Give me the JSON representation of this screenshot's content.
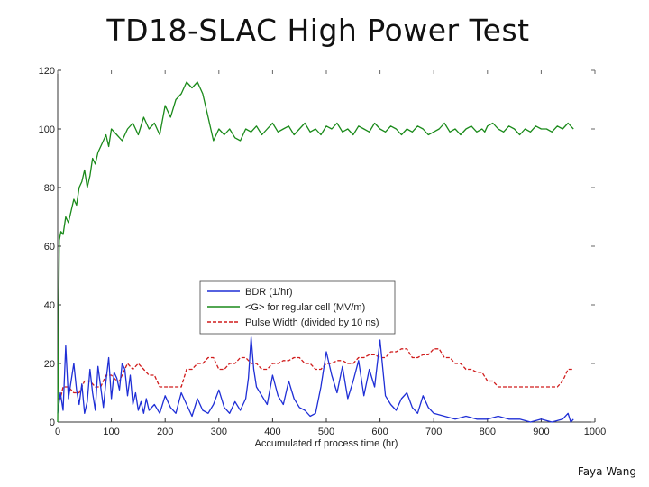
{
  "page": {
    "title": "TD18-SLAC High Power Test",
    "credit": "Faya Wang"
  },
  "chart_data": {
    "type": "line",
    "title": "TD18-SLAC High Power Test",
    "xlabel": "Accumulated rf process time (hr)",
    "ylabel": "",
    "xlim": [
      0,
      1000
    ],
    "ylim": [
      0,
      120
    ],
    "xticks": [
      0,
      100,
      200,
      300,
      400,
      500,
      600,
      700,
      800,
      900,
      1000
    ],
    "yticks": [
      0,
      20,
      40,
      60,
      80,
      100,
      120
    ],
    "grid": false,
    "legend_position": "center",
    "legend": [
      "BDR (1/hr)",
      "<G> for regular cell (MV/m)",
      "Pulse Width (divided by 10 ns)"
    ],
    "series": [
      {
        "name": "BDR (1/hr)",
        "color": "#1f2fd6",
        "style": "solid",
        "x": [
          0,
          5,
          10,
          15,
          20,
          25,
          30,
          35,
          40,
          45,
          50,
          55,
          60,
          65,
          70,
          75,
          80,
          85,
          90,
          95,
          100,
          105,
          110,
          115,
          120,
          125,
          130,
          135,
          140,
          145,
          150,
          155,
          160,
          165,
          170,
          180,
          190,
          200,
          210,
          220,
          230,
          240,
          250,
          260,
          270,
          280,
          290,
          300,
          310,
          320,
          330,
          340,
          350,
          355,
          360,
          365,
          370,
          380,
          390,
          400,
          410,
          420,
          430,
          440,
          450,
          460,
          470,
          480,
          490,
          500,
          510,
          520,
          530,
          540,
          550,
          560,
          570,
          580,
          590,
          600,
          610,
          620,
          630,
          640,
          650,
          660,
          670,
          680,
          690,
          700,
          720,
          740,
          760,
          780,
          800,
          820,
          840,
          860,
          880,
          900,
          920,
          940,
          950,
          955,
          960
        ],
        "y": [
          3,
          10,
          4,
          26,
          8,
          14,
          20,
          11,
          6,
          13,
          3,
          7,
          18,
          10,
          4,
          19,
          12,
          5,
          14,
          22,
          8,
          17,
          15,
          11,
          20,
          18,
          9,
          16,
          6,
          10,
          4,
          7,
          3,
          8,
          4,
          6,
          3,
          9,
          5,
          3,
          10,
          6,
          2,
          8,
          4,
          3,
          6,
          11,
          5,
          3,
          7,
          4,
          8,
          15,
          29,
          18,
          12,
          9,
          6,
          16,
          9,
          6,
          14,
          8,
          5,
          4,
          2,
          3,
          12,
          24,
          16,
          10,
          19,
          8,
          14,
          21,
          9,
          18,
          12,
          28,
          9,
          6,
          4,
          8,
          10,
          5,
          3,
          9,
          5,
          3,
          2,
          1,
          2,
          1,
          1,
          2,
          1,
          1,
          0,
          1,
          0,
          1,
          3,
          0,
          1
        ]
      },
      {
        "name": "<G> for regular cell (MV/m)",
        "color": "#1a8a1a",
        "style": "solid",
        "x": [
          0,
          3,
          6,
          10,
          15,
          20,
          25,
          30,
          35,
          40,
          45,
          50,
          55,
          60,
          65,
          70,
          75,
          80,
          85,
          90,
          95,
          100,
          110,
          120,
          130,
          140,
          150,
          160,
          170,
          180,
          190,
          200,
          210,
          220,
          230,
          240,
          250,
          260,
          270,
          280,
          290,
          300,
          310,
          320,
          330,
          340,
          350,
          360,
          370,
          380,
          390,
          400,
          410,
          420,
          430,
          440,
          450,
          460,
          470,
          480,
          490,
          500,
          510,
          520,
          530,
          540,
          550,
          560,
          570,
          580,
          590,
          600,
          610,
          620,
          630,
          640,
          650,
          660,
          670,
          680,
          690,
          700,
          710,
          720,
          730,
          740,
          750,
          760,
          770,
          780,
          790,
          795,
          800,
          810,
          820,
          830,
          840,
          850,
          860,
          870,
          880,
          890,
          900,
          910,
          920,
          930,
          940,
          950,
          955,
          960
        ],
        "y": [
          0,
          62,
          65,
          64,
          70,
          68,
          72,
          76,
          74,
          80,
          82,
          86,
          80,
          84,
          90,
          88,
          92,
          94,
          96,
          98,
          94,
          100,
          98,
          96,
          100,
          102,
          98,
          104,
          100,
          102,
          98,
          108,
          104,
          110,
          112,
          116,
          114,
          116,
          112,
          104,
          96,
          100,
          98,
          100,
          97,
          96,
          100,
          99,
          101,
          98,
          100,
          102,
          99,
          100,
          101,
          98,
          100,
          102,
          99,
          100,
          98,
          101,
          100,
          102,
          99,
          100,
          98,
          101,
          100,
          99,
          102,
          100,
          99,
          101,
          100,
          98,
          100,
          99,
          101,
          100,
          98,
          99,
          100,
          102,
          99,
          100,
          98,
          100,
          101,
          99,
          100,
          99,
          101,
          102,
          100,
          99,
          101,
          100,
          98,
          100,
          99,
          101,
          100,
          100,
          99,
          101,
          100,
          102,
          101,
          100
        ]
      },
      {
        "name": "Pulse Width (divided by 10 ns)",
        "color": "#d01c1c",
        "style": "dashed",
        "x": [
          0,
          5,
          10,
          20,
          30,
          40,
          50,
          60,
          70,
          80,
          90,
          100,
          110,
          115,
          120,
          125,
          130,
          140,
          150,
          160,
          170,
          180,
          190,
          200,
          230,
          240,
          250,
          260,
          270,
          280,
          290,
          300,
          310,
          320,
          330,
          340,
          350,
          360,
          370,
          380,
          390,
          400,
          410,
          420,
          430,
          440,
          450,
          460,
          470,
          480,
          490,
          500,
          510,
          520,
          530,
          540,
          550,
          560,
          570,
          580,
          590,
          600,
          610,
          620,
          630,
          640,
          650,
          660,
          670,
          680,
          690,
          700,
          710,
          720,
          730,
          740,
          750,
          760,
          770,
          780,
          790,
          800,
          810,
          820,
          830,
          840,
          850,
          860,
          870,
          880,
          890,
          900,
          910,
          920,
          930,
          940,
          950,
          960
        ],
        "y": [
          8,
          8,
          12,
          12,
          10,
          10,
          14,
          14,
          12,
          12,
          16,
          16,
          14,
          14,
          16,
          18,
          20,
          18,
          20,
          18,
          16,
          16,
          12,
          12,
          12,
          18,
          18,
          20,
          20,
          22,
          22,
          18,
          18,
          20,
          20,
          22,
          22,
          20,
          20,
          18,
          18,
          20,
          20,
          21,
          21,
          22,
          22,
          20,
          20,
          18,
          18,
          20,
          20,
          21,
          21,
          20,
          20,
          22,
          22,
          23,
          23,
          22,
          22,
          24,
          24,
          25,
          25,
          22,
          22,
          23,
          23,
          25,
          25,
          22,
          22,
          20,
          20,
          18,
          18,
          17,
          17,
          14,
          14,
          12,
          12,
          12,
          12,
          12,
          12,
          12,
          12,
          12,
          12,
          12,
          12,
          14,
          18,
          18
        ]
      }
    ]
  }
}
